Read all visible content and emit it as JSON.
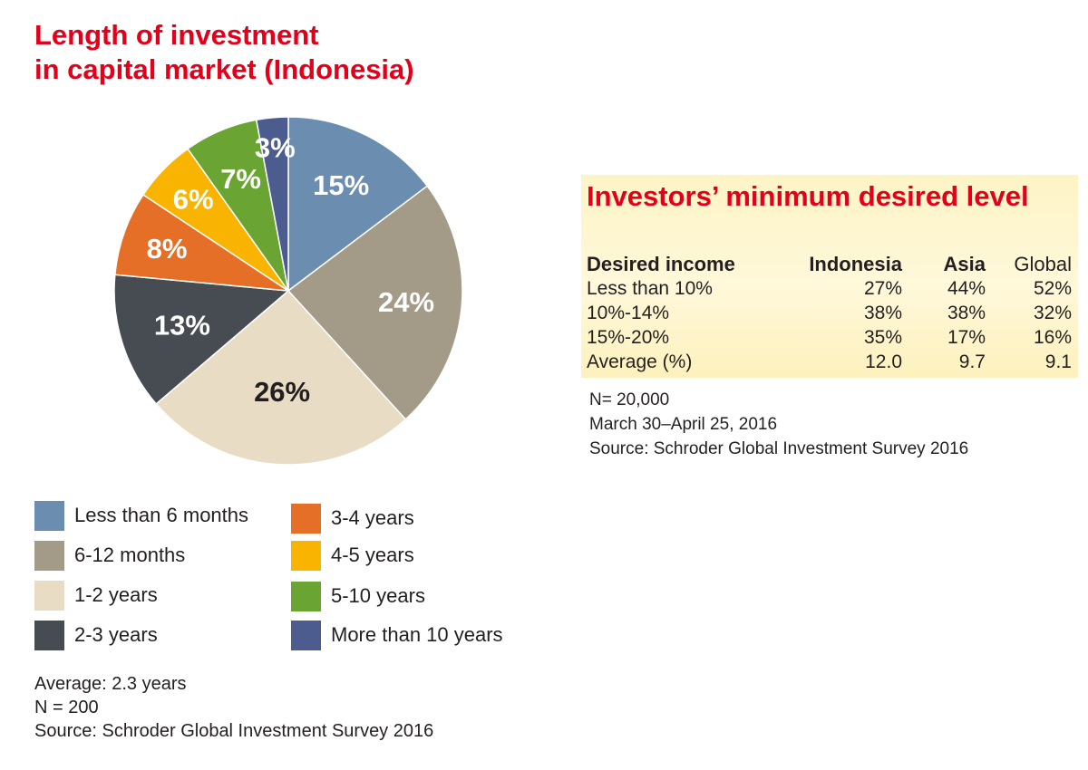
{
  "chart_data": [
    {
      "type": "pie",
      "title_lines": [
        "Length of investment",
        "in capital market (Indonesia)"
      ],
      "slices": [
        {
          "label": "Less than 6 months",
          "value": 15,
          "data_label": "15%",
          "color": "#6a8db0",
          "label_color": "#ffffff"
        },
        {
          "label": "6-12 months",
          "value": 24,
          "data_label": "24%",
          "color": "#a39a88",
          "label_color": "#ffffff"
        },
        {
          "label": "1-2 years",
          "value": 26,
          "data_label": "26%",
          "color": "#e8dcc4",
          "label_color": "#231f20"
        },
        {
          "label": "2-3 years",
          "value": 13,
          "data_label": "13%",
          "color": "#474b52",
          "label_color": "#ffffff"
        },
        {
          "label": "3-4 years",
          "value": 8,
          "data_label": "8%",
          "color": "#e56f27",
          "label_color": "#ffffff"
        },
        {
          "label": "4-5 years",
          "value": 6,
          "data_label": "6%",
          "color": "#f8b400",
          "label_color": "#ffffff"
        },
        {
          "label": "5-10 years",
          "value": 7,
          "data_label": "7%",
          "color": "#6aa433",
          "label_color": "#ffffff"
        },
        {
          "label": "More than 10 years",
          "value": 3,
          "data_label": "3%",
          "color": "#4d5c8f",
          "label_color": "#ffffff"
        }
      ],
      "legend_placement": "bottom",
      "notes": [
        "Average: 2.3 years",
        "N = 200",
        "Source: Schroder Global Investment Survey 2016"
      ]
    },
    {
      "type": "table",
      "title": "Investors’ minimum desired level",
      "columns": [
        "Desired income",
        "Indonesia",
        "Asia",
        "Global"
      ],
      "rows": [
        [
          "Less than 10%",
          "27%",
          "44%",
          "52%"
        ],
        [
          "10%-14%",
          "38%",
          "38%",
          "32%"
        ],
        [
          "15%-20%",
          "35%",
          "17%",
          "16%"
        ],
        [
          "Average (%)",
          "12.0",
          "9.7",
          "9.1"
        ]
      ],
      "notes": [
        "N= 20,000",
        "March 30–April 25, 2016",
        "Source: Schroder Global Investment Survey 2016"
      ]
    }
  ]
}
